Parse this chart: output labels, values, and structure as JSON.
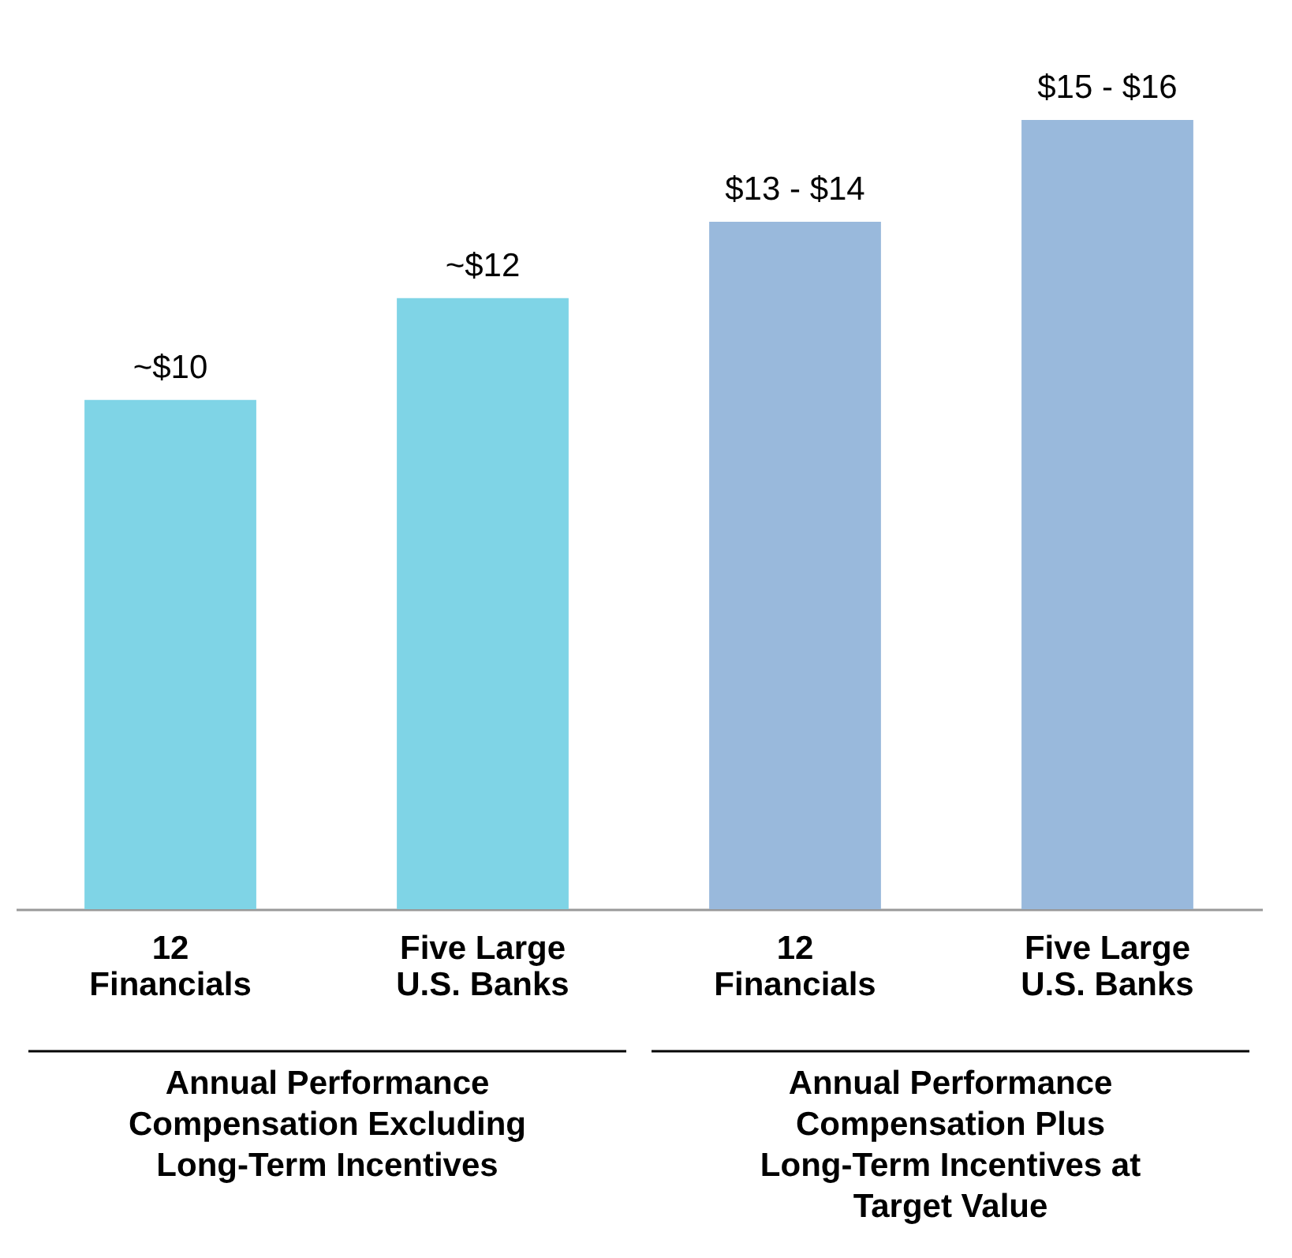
{
  "chart_data": {
    "type": "bar",
    "categories": [
      "12 Financials",
      "Five Large U.S. Banks",
      "12 Financials",
      "Five Large U.S. Banks"
    ],
    "values": [
      10,
      12,
      13.5,
      15.5
    ],
    "colors": [
      "#7fd4e6",
      "#7fd4e6",
      "#99b9dc",
      "#99b9dc"
    ],
    "value_labels": [
      "~$10",
      "~$12",
      "$13 - $14",
      "$15 - $16"
    ],
    "ylim": [
      0,
      15.5
    ],
    "annotations": [
      "Annual Performance Compensation Excluding Long-Term Incentives",
      "Annual Performance Compensation Plus Long-Term Incentives at Target Value"
    ]
  }
}
